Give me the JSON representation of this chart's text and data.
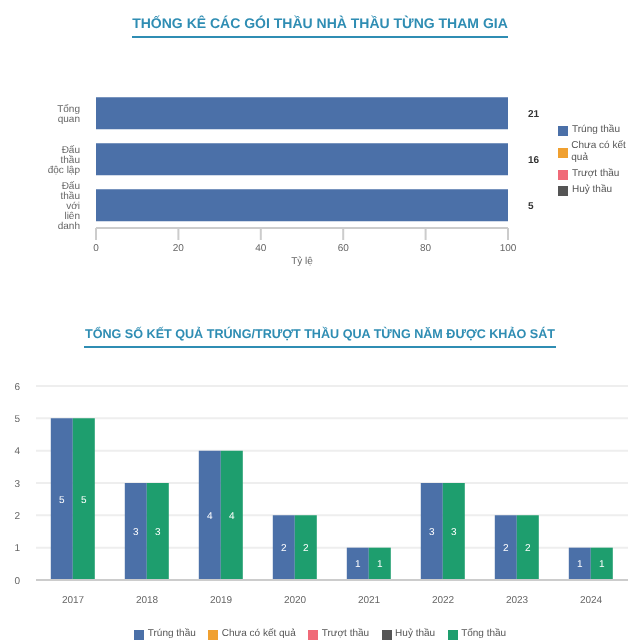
{
  "chart_data": [
    {
      "type": "bar",
      "title": "THỐNG KÊ CÁC GÓI THẦU NHÀ THẦU TỪNG THAM GIA",
      "orientation": "horizontal",
      "categories": [
        "Tổng quan",
        "Đấu thầu độc lập",
        "Đấu thầu với liên danh"
      ],
      "xlabel": "Tỷ lệ",
      "xlim": [
        0,
        100
      ],
      "xticks": [
        0,
        20,
        40,
        60,
        80,
        100
      ],
      "legend": "right",
      "series": [
        {
          "name": "Trúng thầu",
          "color": "#4b70a8",
          "values": [
            100,
            100,
            100
          ]
        },
        {
          "name": "Chưa có kết quả",
          "color": "#f0a030",
          "values": [
            0,
            0,
            0
          ]
        },
        {
          "name": "Trượt thầu",
          "color": "#f06a78",
          "values": [
            0,
            0,
            0
          ]
        },
        {
          "name": "Huỷ thầu",
          "color": "#555555",
          "values": [
            0,
            0,
            0
          ]
        }
      ],
      "annotations": [
        "21",
        "16",
        "5"
      ]
    },
    {
      "type": "bar",
      "title": "TỔNG SỐ KẾT QUẢ TRÚNG/TRƯỢT THẦU QUA TỪNG NĂM ĐƯỢC KHẢO SÁT",
      "categories": [
        "2017",
        "2018",
        "2019",
        "2020",
        "2021",
        "2022",
        "2023",
        "2024"
      ],
      "ylim": [
        0,
        6
      ],
      "yticks": [
        0,
        1,
        2,
        3,
        4,
        5,
        6
      ],
      "grid": "y",
      "legend": "bottom",
      "series": [
        {
          "name": "Trúng thầu",
          "color": "#4b70a8",
          "values": [
            5,
            3,
            4,
            2,
            1,
            3,
            2,
            1
          ],
          "value_labels": [
            "5",
            "3",
            "4",
            "2",
            "1",
            "3",
            "2",
            "1"
          ]
        },
        {
          "name": "Chưa có kết quả",
          "color": "#f0a030",
          "values": [
            0,
            0,
            0,
            0,
            0,
            0,
            0,
            0
          ]
        },
        {
          "name": "Trượt thầu",
          "color": "#f06a78",
          "values": [
            0,
            0,
            0,
            0,
            0,
            0,
            0,
            0
          ]
        },
        {
          "name": "Huỷ thầu",
          "color": "#555555",
          "values": [
            0,
            0,
            0,
            0,
            0,
            0,
            0,
            0
          ]
        },
        {
          "name": "Tổng thầu",
          "color": "#1e9e6e",
          "values": [
            5,
            3,
            4,
            2,
            1,
            3,
            2,
            1
          ],
          "value_labels": [
            "5",
            "3",
            "4",
            "2",
            "1",
            "3",
            "2",
            "1"
          ]
        }
      ]
    }
  ]
}
